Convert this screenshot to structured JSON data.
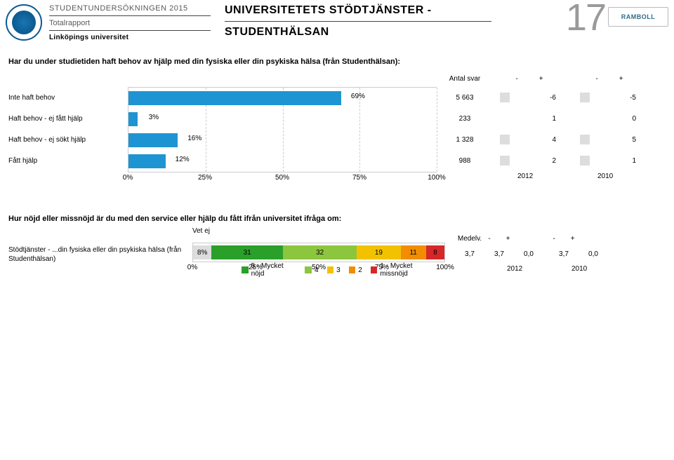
{
  "header": {
    "survey_title": "STUDENTUNDERSÖKNINGEN 2015",
    "report_type": "Totalrapport",
    "university": "Linköpings universitet",
    "section_line1": "UNIVERSITETETS STÖDTJÄNSTER -",
    "section_line2": "STUDENTHÄLSAN",
    "page_number": "17",
    "brand": "RAMBOLL"
  },
  "q1": {
    "text": "Har du under studietiden haft behov av hjälp med din fysiska eller din psykiska hälsa (från Studenthälsan):",
    "antal_svar_label": "Antal svar",
    "bar_color": "#1f94d2",
    "grid_color": "#cccccc",
    "badge_color": "#dddddd",
    "rows": [
      {
        "label": "Inte haft behov",
        "pct": 69,
        "antal": "5 663",
        "y2012": "-6",
        "y2010": "-5",
        "badge2012": true,
        "badge2010": true
      },
      {
        "label": "Haft behov - ej fått hjälp",
        "pct": 3,
        "antal": "233",
        "y2012": "1",
        "y2010": "0",
        "badge2012": false,
        "badge2010": false
      },
      {
        "label": "Haft behov - ej sökt hjälp",
        "pct": 16,
        "antal": "1 328",
        "y2012": "4",
        "y2010": "5",
        "badge2012": true,
        "badge2010": true
      },
      {
        "label": "Fått hjälp",
        "pct": 12,
        "antal": "988",
        "y2012": "2",
        "y2010": "1",
        "badge2012": true,
        "badge2010": true
      }
    ],
    "xticks": [
      0,
      25,
      50,
      75,
      100
    ],
    "year1": "2012",
    "year2": "2010",
    "pm_minus": "-",
    "pm_plus": "+"
  },
  "q2": {
    "text": "Hur nöjd eller missnöjd är du med den service eller hjälp du fått ifrån universitet ifråga om:",
    "row_label": "Stödtjänster - ...din fysiska eller din psykiska hälsa (från Studenthälsan)",
    "vetej_label": "Vet ej",
    "medelv_label": "Medelv.",
    "segments": [
      {
        "label": "8%",
        "val": 8,
        "color": "#dddddd",
        "name": "vetej"
      },
      {
        "label": "31",
        "val": 31,
        "color": "#2aa02a",
        "name": "5"
      },
      {
        "label": "32",
        "val": 32,
        "color": "#8cc63f",
        "name": "4"
      },
      {
        "label": "19",
        "val": 19,
        "color": "#f2c200",
        "name": "3"
      },
      {
        "label": "11",
        "val": 11,
        "color": "#f28c00",
        "name": "2"
      },
      {
        "label": "8",
        "val": 8,
        "color": "#d62828",
        "name": "1"
      }
    ],
    "xticks": [
      0,
      25,
      50,
      75,
      100
    ],
    "legend": [
      {
        "label": "5 - Mycket nöjd",
        "color": "#2aa02a"
      },
      {
        "label": "4",
        "color": "#8cc63f"
      },
      {
        "label": "3",
        "color": "#f2c200"
      },
      {
        "label": "2",
        "color": "#f28c00"
      },
      {
        "label": "1 - Mycket missnöjd",
        "color": "#d62828"
      }
    ],
    "med_this": "3,7",
    "med_2012": "3,7",
    "diff_2012": "0,0",
    "med_2010": "3,7",
    "diff_2010": "0,0",
    "year1": "2012",
    "year2": "2010",
    "pm_minus": "-",
    "pm_plus": "+"
  }
}
